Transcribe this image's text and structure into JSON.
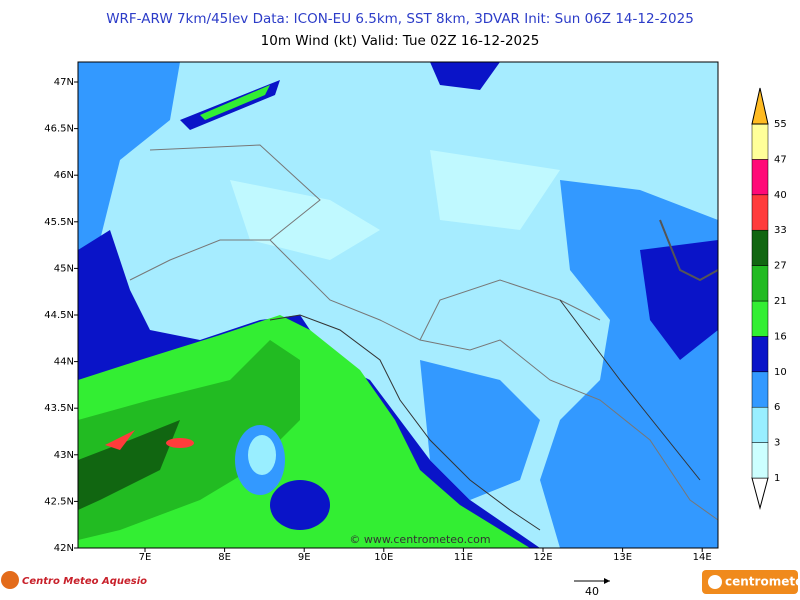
{
  "header": {
    "title": "WRF-ARW 7km/45lev   Data: ICON-EU 6.5km, SST 8km, 3DVAR   Init: Sun 06Z 14-12-2025",
    "subtitle": "10m Wind (kt)  Valid: Tue 02Z 16-12-2025"
  },
  "map": {
    "lat_labels": [
      "47N",
      "46.5N",
      "46N",
      "45.5N",
      "45N",
      "44.5N",
      "44N",
      "43.5N",
      "43N",
      "42.5N",
      "42N"
    ],
    "lon_labels": [
      "7E",
      "8E",
      "9E",
      "10E",
      "11E",
      "12E",
      "13E",
      "14E"
    ],
    "watermark": "© www.centrometeo.com"
  },
  "colorbar": {
    "levels": [
      1,
      3,
      6,
      10,
      16,
      21,
      27,
      33,
      40,
      47,
      55
    ],
    "colors": [
      "#ccffff",
      "#99eeff",
      "#3399ff",
      "#0a14c8",
      "#33ee33",
      "#22bb22",
      "#116611",
      "#ff3b3b",
      "#ff0a78",
      "#ffff99"
    ],
    "top_color": "#ffbb22"
  },
  "footer": {
    "left_logo": "Centro Meteo Aquesio",
    "right_logo": "centrometeo",
    "scale_label": "40"
  }
}
